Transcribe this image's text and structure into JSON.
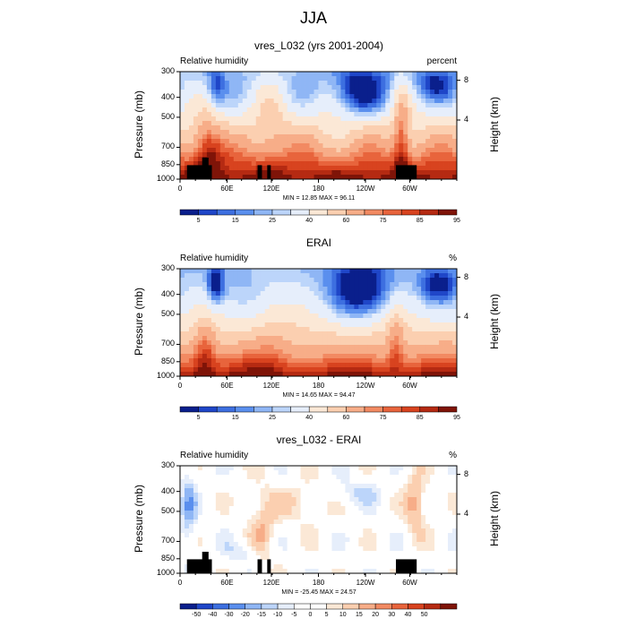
{
  "title": "JJA",
  "colors": {
    "rh_levels": [
      "#0a1f8c",
      "#1f46c8",
      "#3d6fe0",
      "#5a8fee",
      "#8fb6f5",
      "#bcd5fa",
      "#e6eefb",
      "#fbe8d6",
      "#fbcfb0",
      "#f7ad88",
      "#f28a62",
      "#e8643c",
      "#d8431f",
      "#b52a12",
      "#7f1408"
    ],
    "diff_levels": [
      "#0a1f8c",
      "#1f46c8",
      "#3d6fe0",
      "#5a8fee",
      "#8fb6f5",
      "#bcd5fa",
      "#e6eefb",
      "#ffffff",
      "#ffffff",
      "#fbe8d6",
      "#fbcfb0",
      "#f7ad88",
      "#f28a62",
      "#e8643c",
      "#d8431f",
      "#b52a12",
      "#7f1408"
    ],
    "terrain": "#000000"
  },
  "chart_data": [
    {
      "type": "heatmap",
      "title": "vres_L032 (yrs 2001-2004)",
      "variable": "Relative humidity",
      "units": "percent",
      "ylabel": "Pressure (mb)",
      "ylabel_right": "Height (km)",
      "y_ticks": [
        "300",
        "400",
        "500",
        "700",
        "850",
        "1000"
      ],
      "y_right_ticks": [
        "8",
        "4"
      ],
      "x_ticks": [
        "0",
        "60E",
        "120E",
        "180",
        "120W",
        "60W"
      ],
      "stats": "MIN = 12.85  MAX = 96.11",
      "colorbar_labels": [
        "5",
        "15",
        "25",
        "40",
        "60",
        "75",
        "85",
        "95"
      ],
      "terrain": true
    },
    {
      "type": "heatmap",
      "title": "ERAI",
      "variable": "Relative humidity",
      "units": "%",
      "ylabel": "Pressure (mb)",
      "ylabel_right": "Height (km)",
      "y_ticks": [
        "300",
        "400",
        "500",
        "700",
        "850",
        "1000"
      ],
      "y_right_ticks": [
        "8",
        "4"
      ],
      "x_ticks": [
        "0",
        "60E",
        "120E",
        "180",
        "120W",
        "60W"
      ],
      "stats": "MIN = 14.65  MAX = 94.47",
      "colorbar_labels": [
        "5",
        "15",
        "25",
        "40",
        "60",
        "75",
        "85",
        "95"
      ],
      "terrain": false
    },
    {
      "type": "heatmap",
      "title": "vres_L032 - ERAI",
      "variable": "Relative humidity",
      "units": "%",
      "ylabel": "Pressure (mb)",
      "ylabel_right": "Height (km)",
      "y_ticks": [
        "300",
        "400",
        "500",
        "700",
        "850",
        "1000"
      ],
      "y_right_ticks": [
        "8",
        "4"
      ],
      "x_ticks": [
        "0",
        "60E",
        "120E",
        "180",
        "120W",
        "60W"
      ],
      "stats": "MIN = -25.45  MAX = 24.57",
      "colorbar_labels": [
        "-50",
        "-40",
        "-30",
        "-20",
        "-15",
        "-10",
        "-5",
        "0",
        "5",
        "10",
        "15",
        "20",
        "30",
        "40",
        "50"
      ],
      "terrain": true
    }
  ]
}
